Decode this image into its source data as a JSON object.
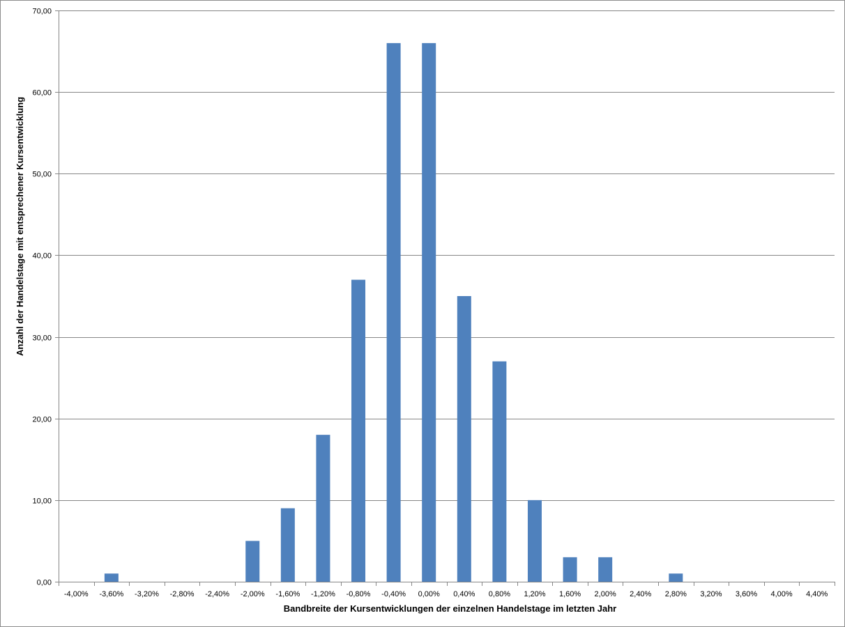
{
  "chart_data": {
    "type": "bar",
    "categories": [
      "-4,00%",
      "-3,60%",
      "-3,20%",
      "-2,80%",
      "-2,40%",
      "-2,00%",
      "-1,60%",
      "-1,20%",
      "-0,80%",
      "-0,40%",
      "0,00%",
      "0,40%",
      "0,80%",
      "1,20%",
      "1,60%",
      "2,00%",
      "2,40%",
      "2,80%",
      "3,20%",
      "3,60%",
      "4,00%",
      "4,40%"
    ],
    "values": [
      0,
      1,
      0,
      0,
      0,
      5,
      9,
      18,
      37,
      66,
      66,
      35,
      27,
      10,
      3,
      3,
      0,
      1,
      0,
      0,
      0,
      0
    ],
    "title": "",
    "xlabel": "Bandbreite der Kursentwicklungen der einzelnen Handelstage im letzten Jahr",
    "ylabel": "Anzahl der Handelstage mit entsprechener Kursentwicklung",
    "ylim": [
      0,
      70
    ],
    "yticks": [
      0,
      10,
      20,
      30,
      40,
      50,
      60,
      70
    ],
    "ytick_labels": [
      "0,00",
      "10,00",
      "20,00",
      "30,00",
      "40,00",
      "50,00",
      "60,00",
      "70,00"
    ],
    "grid": true,
    "legend": "none",
    "bar_color": "#4f81bd",
    "grid_color": "#868686"
  }
}
